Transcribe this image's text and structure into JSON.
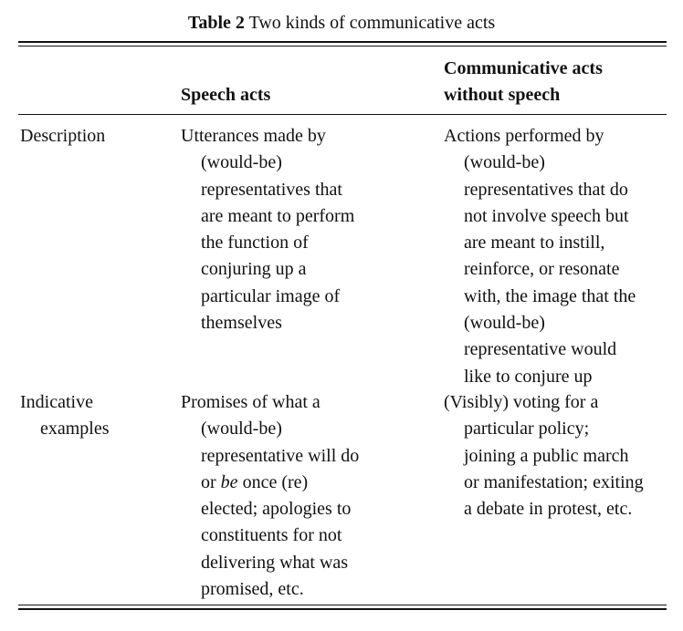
{
  "title": {
    "label": "Table 2",
    "text": "Two kinds of communicative acts"
  },
  "headers": {
    "col2": "Speech acts",
    "col3_line1": "Communicative acts",
    "col3_line2": "without speech"
  },
  "rows": [
    {
      "label": [
        "Description"
      ],
      "speech": [
        "Utterances made by",
        "(would-be)",
        "representatives that",
        "are meant to perform",
        "the function of",
        "conjuring up a",
        "particular image of",
        "themselves"
      ],
      "nonspeech": [
        "Actions performed by",
        "(would-be)",
        "representatives that do",
        "not involve speech but",
        "are meant to instill,",
        "reinforce, or resonate",
        "with, the image that the",
        "(would-be)",
        "representative would",
        "like to conjure up"
      ]
    },
    {
      "label": [
        "Indicative",
        "examples"
      ],
      "speech": [
        "Promises of what a",
        "(would-be)",
        "representative will do",
        "or ",
        "be",
        " once (re)",
        "elected; apologies to",
        "constituents for not",
        "delivering what was",
        "promised, etc."
      ],
      "nonspeech": [
        "(Visibly) voting for a",
        "particular policy;",
        "joining a public march",
        "or manifestation; exiting",
        "a debate in protest, etc."
      ]
    }
  ]
}
